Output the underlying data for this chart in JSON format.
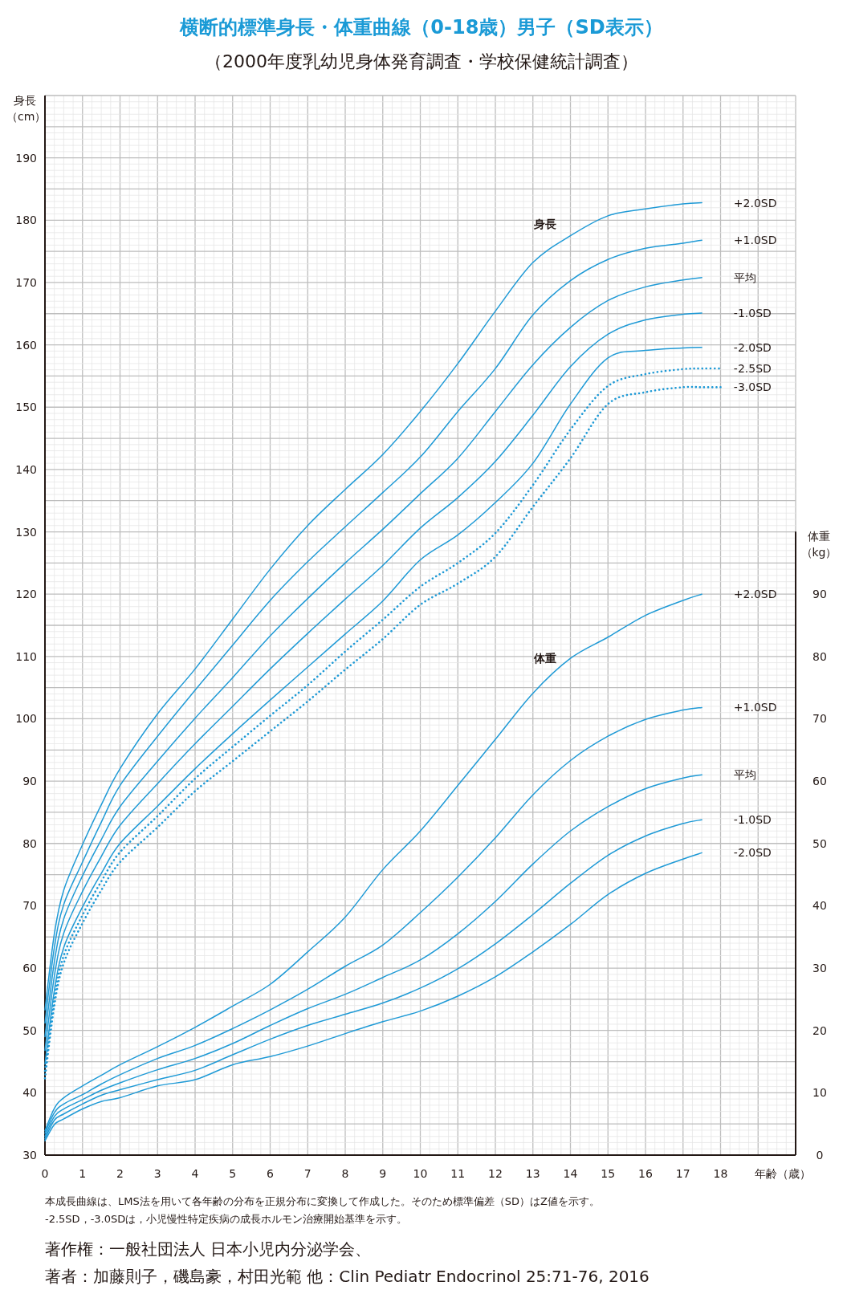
{
  "chart_data": {
    "type": "line",
    "title": "横断的標準身長・体重曲線（0-18歳）男子（SD表示）",
    "subtitle": "（2000年度乳幼児身体発育調査・学校保健統計調査）",
    "xlabel": "年齢（歳）",
    "ylabel": "身長（cm）",
    "y2label": "体重（kg）",
    "x": [
      0,
      0.25,
      0.5,
      1,
      1.5,
      2,
      3,
      4,
      5,
      6,
      7,
      8,
      9,
      10,
      11,
      12,
      13,
      14,
      15,
      16,
      17,
      17.5
    ],
    "xlim": [
      0,
      20
    ],
    "xticks": [
      0,
      1,
      2,
      3,
      4,
      5,
      6,
      7,
      8,
      9,
      10,
      11,
      12,
      13,
      14,
      15,
      16,
      17,
      18
    ],
    "ylim": [
      30,
      200
    ],
    "yticks": [
      30,
      40,
      50,
      60,
      70,
      80,
      90,
      100,
      110,
      120,
      130,
      140,
      150,
      160,
      170,
      180,
      190
    ],
    "y2lim": [
      0,
      170
    ],
    "y2ticks": [
      0,
      10,
      20,
      30,
      40,
      50,
      60,
      70,
      80,
      90
    ],
    "grid": true,
    "legend": false,
    "marker": "none",
    "series": [
      {
        "name": "+2.0SD",
        "color": "#1f9ad6",
        "values": [
          53.3,
          65.5,
          72.5,
          79.8,
          86.2,
          92,
          100.8,
          108,
          116,
          124,
          131,
          136.8,
          142.4,
          149.3,
          157,
          165.4,
          173.2,
          177.5,
          180.7,
          181.8,
          182.6,
          182.8
        ]
      },
      {
        "name": "+1.0SD",
        "color": "#1f9ad6",
        "values": [
          51.2,
          63.3,
          70.2,
          77,
          83.4,
          89.3,
          97.2,
          104.6,
          111.8,
          119,
          125.2,
          130.8,
          136.3,
          142,
          149.3,
          156.2,
          164.8,
          170.3,
          173.7,
          175.5,
          176.3,
          176.8
        ]
      },
      {
        "name": "平均",
        "color": "#1f9ad6",
        "values": [
          49,
          61,
          67.9,
          74.8,
          80.6,
          85.9,
          93.2,
          100.1,
          106.6,
          113.3,
          119.3,
          125,
          130.4,
          136.1,
          141.8,
          149.3,
          156.8,
          162.8,
          167.1,
          169.3,
          170.4,
          170.8
        ]
      },
      {
        "name": "-1.0SD",
        "color": "#1f9ad6",
        "values": [
          46.8,
          58.7,
          65.6,
          72.3,
          77.9,
          82.9,
          89.6,
          96,
          102,
          108,
          113.7,
          119.2,
          124.6,
          130.6,
          135.5,
          141.3,
          148.7,
          156.5,
          161.7,
          164,
          164.9,
          165.1
        ]
      },
      {
        "name": "-2.0SD",
        "color": "#1f9ad6",
        "values": [
          44.6,
          56.4,
          63.3,
          69.8,
          75.2,
          80,
          86,
          92,
          97.6,
          103,
          108.3,
          113.6,
          118.9,
          125.5,
          129.5,
          134.7,
          141,
          150.5,
          157.9,
          159.1,
          159.5,
          159.6
        ]
      },
      {
        "name": "-2.5SD",
        "color": "#1f9ad6",
        "line_style": "dotted",
        "x": [
          0,
          0.25,
          0.5,
          1,
          1.5,
          2,
          3,
          4,
          5,
          6,
          7,
          8,
          9,
          10,
          11,
          12,
          13,
          14,
          15,
          16,
          17,
          17.5,
          18
        ],
        "values": [
          43.5,
          55.2,
          62,
          68.5,
          73.9,
          78.6,
          84.4,
          90.4,
          95.5,
          100.5,
          105.4,
          110.8,
          115.9,
          121.2,
          125,
          129.8,
          137.5,
          146.4,
          153.4,
          155.3,
          156.1,
          156.2,
          156.2
        ]
      },
      {
        "name": "-3.0SD",
        "color": "#1f9ad6",
        "line_style": "dotted",
        "x": [
          0,
          0.25,
          0.5,
          1,
          1.5,
          2,
          3,
          4,
          5,
          6,
          7,
          8,
          9,
          10,
          11,
          12,
          13,
          14,
          15,
          16,
          17,
          17.5,
          18
        ],
        "values": [
          42.3,
          54,
          60.8,
          67.2,
          72.5,
          77,
          82.6,
          88.4,
          93.2,
          98,
          102.8,
          107.9,
          112.8,
          118.3,
          121.7,
          126,
          134,
          141.8,
          150.5,
          152.4,
          153.2,
          153.2,
          153.2
        ]
      },
      {
        "name": "+2.0SD",
        "color": "#1f9ad6",
        "axis": "y2",
        "values": [
          3.9,
          7.5,
          9.2,
          11.1,
          12.8,
          14.5,
          17.4,
          20.5,
          23.9,
          27.4,
          32.6,
          38.2,
          45.8,
          52,
          59.3,
          66.7,
          74.1,
          79.7,
          83.1,
          86.6,
          89,
          90
        ]
      },
      {
        "name": "+1.0SD",
        "color": "#1f9ad6",
        "axis": "y2",
        "values": [
          3.5,
          6.8,
          8.2,
          9.7,
          11.4,
          12.9,
          15.5,
          17.6,
          20.3,
          23.3,
          26.6,
          30.3,
          33.7,
          38.9,
          44.6,
          50.9,
          57.8,
          63.3,
          67.2,
          69.9,
          71.4,
          71.8
        ]
      },
      {
        "name": "平均",
        "color": "#1f9ad6",
        "axis": "y2",
        "values": [
          3,
          6.2,
          7.4,
          8.9,
          10.4,
          11.6,
          13.7,
          15.5,
          17.9,
          20.8,
          23.5,
          25.8,
          28.5,
          31.3,
          35.5,
          40.7,
          46.7,
          52,
          55.9,
          58.8,
          60.5,
          61
        ]
      },
      {
        "name": "-1.0SD",
        "color": "#1f9ad6",
        "axis": "y2",
        "values": [
          2.6,
          5.6,
          6.6,
          8.2,
          9.6,
          10.5,
          12.1,
          13.6,
          16.1,
          18.6,
          20.8,
          22.6,
          24.4,
          26.8,
          29.9,
          33.9,
          38.6,
          43.6,
          48.1,
          51.2,
          53.2,
          53.8
        ]
      },
      {
        "name": "-2.0SD",
        "color": "#1f9ad6",
        "axis": "y2",
        "values": [
          2.3,
          4.9,
          5.8,
          7.4,
          8.6,
          9.2,
          11.1,
          12.1,
          14.5,
          15.8,
          17.5,
          19.5,
          21.4,
          23.1,
          25.5,
          28.6,
          32.6,
          37,
          41.8,
          45.2,
          47.5,
          48.5
        ]
      }
    ],
    "annotations": [
      "身長",
      "体重",
      "本成長曲線は、LMS法を用いて各年齢の分布を正規分布に変換して作成した。そのため標準偏差（SD）はZ値を示す。",
      "-2.5SD，-3.0SDは，小児慢性特定疾病の成長ホルモン治療開始基準を示す。",
      "著作権：一般社団法人 日本小児内分泌学会、",
      "著者：加藤則子，磯島豪，村田光範 他：Clin Pediatr Endocrinol 25:71-76, 2016"
    ]
  }
}
